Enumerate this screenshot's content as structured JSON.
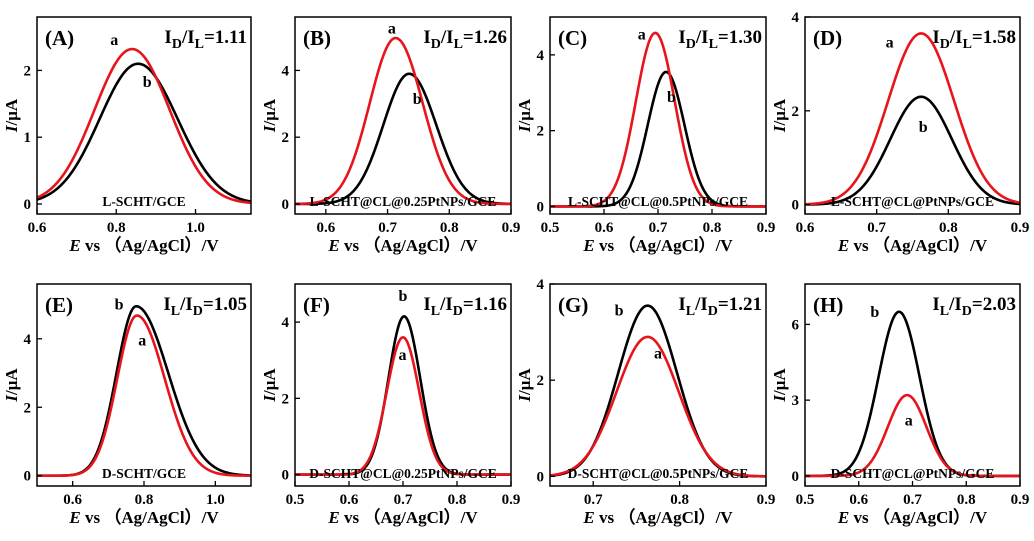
{
  "colors": {
    "a": "#e8141b",
    "b": "#000000"
  },
  "xlabel": {
    "prefix": "E",
    "suffix": " vs （Ag/AgCl）/V"
  },
  "ylabel": {
    "prefix": "I",
    "suffix": "/μA"
  },
  "chart_data": [
    {
      "type": "line",
      "panel": "(A)",
      "ratio": {
        "n": "D",
        "d": "L",
        "v": "=1.11"
      },
      "electrode": "L-SCHT/GCE",
      "xlim": [
        0.6,
        1.14
      ],
      "ylim": [
        -0.15,
        2.8
      ],
      "xticks": [
        {
          "v": 0.6,
          "t": "0.6"
        },
        {
          "v": 0.8,
          "t": "0.8"
        },
        {
          "v": 1.0,
          "t": "1.0"
        }
      ],
      "yticks": [
        {
          "v": 0,
          "t": "0"
        },
        {
          "v": 1,
          "t": "1"
        },
        {
          "v": 2,
          "t": "2"
        }
      ],
      "series": [
        {
          "key": "a",
          "label": "a",
          "peak": 0.84,
          "height": 2.32,
          "wl": 0.095,
          "wr": 0.095,
          "label_at": [
            0.795,
            2.38
          ]
        },
        {
          "key": "b",
          "label": "b",
          "peak": 0.855,
          "height": 2.1,
          "wl": 0.097,
          "wr": 0.1,
          "label_at": [
            0.878,
            1.75
          ]
        }
      ]
    },
    {
      "type": "line",
      "panel": "(B)",
      "ratio": {
        "n": "D",
        "d": "L",
        "v": "=1.26"
      },
      "electrode": "L-SCHT@CL@0.25PtNPs/GCE",
      "xlim": [
        0.55,
        0.9
      ],
      "ylim": [
        -0.3,
        5.6
      ],
      "xticks": [
        {
          "v": 0.6,
          "t": "0.6"
        },
        {
          "v": 0.7,
          "t": "0.7"
        },
        {
          "v": 0.8,
          "t": "0.8"
        },
        {
          "v": 0.9,
          "t": "0.9"
        }
      ],
      "yticks": [
        {
          "v": 0,
          "t": "0"
        },
        {
          "v": 2,
          "t": "2"
        },
        {
          "v": 4,
          "t": "4"
        }
      ],
      "series": [
        {
          "key": "a",
          "label": "a",
          "peak": 0.713,
          "height": 4.97,
          "wl": 0.042,
          "wr": 0.044,
          "label_at": [
            0.707,
            5.1
          ]
        },
        {
          "key": "b",
          "label": "b",
          "peak": 0.735,
          "height": 3.9,
          "wl": 0.042,
          "wr": 0.044,
          "label_at": [
            0.748,
            3.0
          ]
        }
      ]
    },
    {
      "type": "line",
      "panel": "(C)",
      "ratio": {
        "n": "D",
        "d": "L",
        "v": "=1.30"
      },
      "electrode": "L-SCHT@CL@0.5PtNPs/GCE",
      "xlim": [
        0.5,
        0.9
      ],
      "ylim": [
        -0.2,
        5.0
      ],
      "xticks": [
        {
          "v": 0.5,
          "t": "0.5"
        },
        {
          "v": 0.6,
          "t": "0.6"
        },
        {
          "v": 0.7,
          "t": "0.7"
        },
        {
          "v": 0.8,
          "t": "0.8"
        },
        {
          "v": 0.9,
          "t": "0.9"
        }
      ],
      "yticks": [
        {
          "v": 0,
          "t": "0"
        },
        {
          "v": 2,
          "t": "2"
        },
        {
          "v": 4,
          "t": "4"
        }
      ],
      "series": [
        {
          "key": "a",
          "label": "a",
          "peak": 0.695,
          "height": 4.58,
          "wl": 0.036,
          "wr": 0.036,
          "label_at": [
            0.67,
            4.4
          ]
        },
        {
          "key": "b",
          "label": "b",
          "peak": 0.715,
          "height": 3.55,
          "wl": 0.034,
          "wr": 0.034,
          "label_at": [
            0.725,
            2.75
          ]
        }
      ]
    },
    {
      "type": "line",
      "panel": "(D)",
      "ratio": {
        "n": "D",
        "d": "L",
        "v": "=1.58"
      },
      "electrode": "L-SCHT@CL@PtNPs/GCE",
      "xlim": [
        0.6,
        0.9
      ],
      "ylim": [
        -0.2,
        4.0
      ],
      "xticks": [
        {
          "v": 0.6,
          "t": "0.6"
        },
        {
          "v": 0.7,
          "t": "0.7"
        },
        {
          "v": 0.8,
          "t": "0.8"
        },
        {
          "v": 0.9,
          "t": "0.9"
        }
      ],
      "yticks": [
        {
          "v": 0,
          "t": "0"
        },
        {
          "v": 2,
          "t": "2"
        },
        {
          "v": 4,
          "t": "4"
        }
      ],
      "series": [
        {
          "key": "a",
          "label": "a",
          "peak": 0.762,
          "height": 3.65,
          "wl": 0.046,
          "wr": 0.046,
          "label_at": [
            0.718,
            3.35
          ]
        },
        {
          "key": "b",
          "label": "b",
          "peak": 0.762,
          "height": 2.3,
          "wl": 0.043,
          "wr": 0.043,
          "label_at": [
            0.765,
            1.55
          ]
        }
      ]
    },
    {
      "type": "line",
      "panel": "(E)",
      "ratio": {
        "n": "L",
        "d": "D",
        "v": "=1.05"
      },
      "electrode": "D-SCHT/GCE",
      "xlim": [
        0.5,
        1.1
      ],
      "ylim": [
        -0.3,
        5.6
      ],
      "xticks": [
        {
          "v": 0.6,
          "t": "0.6"
        },
        {
          "v": 0.8,
          "t": "0.8"
        },
        {
          "v": 1.0,
          "t": "1.0"
        }
      ],
      "yticks": [
        {
          "v": 0,
          "t": "0"
        },
        {
          "v": 2,
          "t": "2"
        },
        {
          "v": 4,
          "t": "4"
        }
      ],
      "series": [
        {
          "key": "a",
          "label": "a",
          "peak": 0.78,
          "height": 4.68,
          "wl": 0.055,
          "wr": 0.078,
          "label_at": [
            0.795,
            3.8
          ]
        },
        {
          "key": "b",
          "label": "b",
          "peak": 0.778,
          "height": 4.95,
          "wl": 0.055,
          "wr": 0.09,
          "label_at": [
            0.73,
            4.85
          ]
        }
      ]
    },
    {
      "type": "line",
      "panel": "(F)",
      "ratio": {
        "n": "L",
        "d": "D",
        "v": "=1.16"
      },
      "electrode": "D-SCHT@CL@0.25PtNPs/GCE",
      "xlim": [
        0.5,
        0.9
      ],
      "ylim": [
        -0.3,
        5.0
      ],
      "xticks": [
        {
          "v": 0.5,
          "t": "0.5"
        },
        {
          "v": 0.6,
          "t": "0.6"
        },
        {
          "v": 0.7,
          "t": "0.7"
        },
        {
          "v": 0.8,
          "t": "0.8"
        },
        {
          "v": 0.9,
          "t": "0.9"
        }
      ],
      "yticks": [
        {
          "v": 0,
          "t": "0"
        },
        {
          "v": 2,
          "t": "2"
        },
        {
          "v": 4,
          "t": "4"
        }
      ],
      "series": [
        {
          "key": "a",
          "label": "a",
          "peak": 0.7,
          "height": 3.6,
          "wl": 0.03,
          "wr": 0.03,
          "label_at": [
            0.699,
            3.0
          ]
        },
        {
          "key": "b",
          "label": "b",
          "peak": 0.702,
          "height": 4.15,
          "wl": 0.029,
          "wr": 0.03,
          "label_at": [
            0.7,
            4.55
          ]
        }
      ]
    },
    {
      "type": "line",
      "panel": "(G)",
      "ratio": {
        "n": "L",
        "d": "D",
        "v": "=1.21"
      },
      "electrode": "D-SCHT@CL@0.5PtNPs/GCE",
      "xlim": [
        0.65,
        0.9
      ],
      "ylim": [
        -0.2,
        4.0
      ],
      "xticks": [
        {
          "v": 0.7,
          "t": "0.7"
        },
        {
          "v": 0.8,
          "t": "0.8"
        },
        {
          "v": 0.9,
          "t": "0.9"
        }
      ],
      "yticks": [
        {
          "v": 0,
          "t": "0"
        },
        {
          "v": 2,
          "t": "2"
        },
        {
          "v": 4,
          "t": "4"
        }
      ],
      "series": [
        {
          "key": "a",
          "label": "a",
          "peak": 0.763,
          "height": 2.9,
          "wl": 0.036,
          "wr": 0.036,
          "label_at": [
            0.775,
            2.45
          ]
        },
        {
          "key": "b",
          "label": "b",
          "peak": 0.763,
          "height": 3.55,
          "wl": 0.034,
          "wr": 0.034,
          "label_at": [
            0.73,
            3.35
          ]
        }
      ]
    },
    {
      "type": "line",
      "panel": "(H)",
      "ratio": {
        "n": "L",
        "d": "D",
        "v": "=2.03"
      },
      "electrode": "D-SCHT@CL@PtNPs/GCE",
      "xlim": [
        0.5,
        0.9
      ],
      "ylim": [
        -0.4,
        7.6
      ],
      "xticks": [
        {
          "v": 0.5,
          "t": "0.5"
        },
        {
          "v": 0.6,
          "t": "0.6"
        },
        {
          "v": 0.7,
          "t": "0.7"
        },
        {
          "v": 0.8,
          "t": "0.8"
        },
        {
          "v": 0.9,
          "t": "0.9"
        }
      ],
      "yticks": [
        {
          "v": 0,
          "t": "0"
        },
        {
          "v": 3,
          "t": "3"
        },
        {
          "v": 6,
          "t": "6"
        }
      ],
      "series": [
        {
          "key": "a",
          "label": "a",
          "peak": 0.69,
          "height": 3.2,
          "wl": 0.036,
          "wr": 0.036,
          "label_at": [
            0.693,
            2.0
          ]
        },
        {
          "key": "b",
          "label": "b",
          "peak": 0.675,
          "height": 6.5,
          "wl": 0.038,
          "wr": 0.038,
          "label_at": [
            0.63,
            6.3
          ]
        }
      ]
    }
  ]
}
